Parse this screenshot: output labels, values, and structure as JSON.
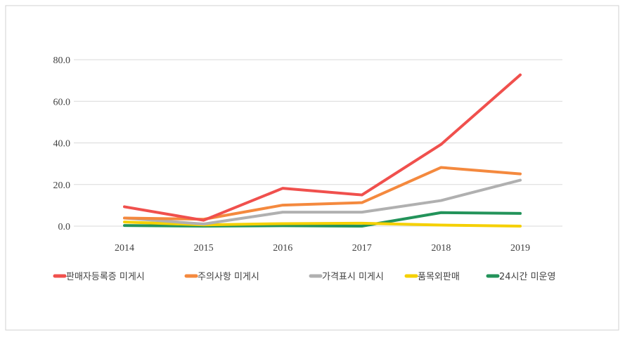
{
  "chart_data": {
    "type": "line",
    "title": "",
    "xlabel": "",
    "ylabel": "",
    "categories": [
      "2014",
      "2015",
      "2016",
      "2017",
      "2018",
      "2019"
    ],
    "ylim": [
      0,
      80
    ],
    "yticks": [
      "0.0",
      "20.0",
      "40.0",
      "60.0",
      "80.0"
    ],
    "ytick_values": [
      0,
      20,
      40,
      60,
      80
    ],
    "grid": true,
    "legend_placement": "bottom",
    "series": [
      {
        "name": "판매자등록증 미게시",
        "color": "#f0504d",
        "values": [
          9.3,
          2.8,
          18.2,
          15.0,
          39.3,
          72.7
        ]
      },
      {
        "name": "주의사항 미게시",
        "color": "#f4893e",
        "values": [
          3.9,
          3.3,
          10.1,
          11.3,
          28.2,
          25.1
        ]
      },
      {
        "name": "가격표시 미게시",
        "color": "#b0b0b0",
        "values": [
          3.9,
          1.0,
          6.7,
          6.7,
          12.3,
          22.1
        ]
      },
      {
        "name": "품목외판매",
        "color": "#f5d000",
        "values": [
          2.0,
          0.6,
          1.2,
          1.4,
          0.5,
          0.0
        ]
      },
      {
        "name": "24시간 미운영",
        "color": "#23935a",
        "values": [
          0.3,
          0.0,
          0.2,
          0.0,
          6.5,
          6.1
        ]
      }
    ]
  }
}
